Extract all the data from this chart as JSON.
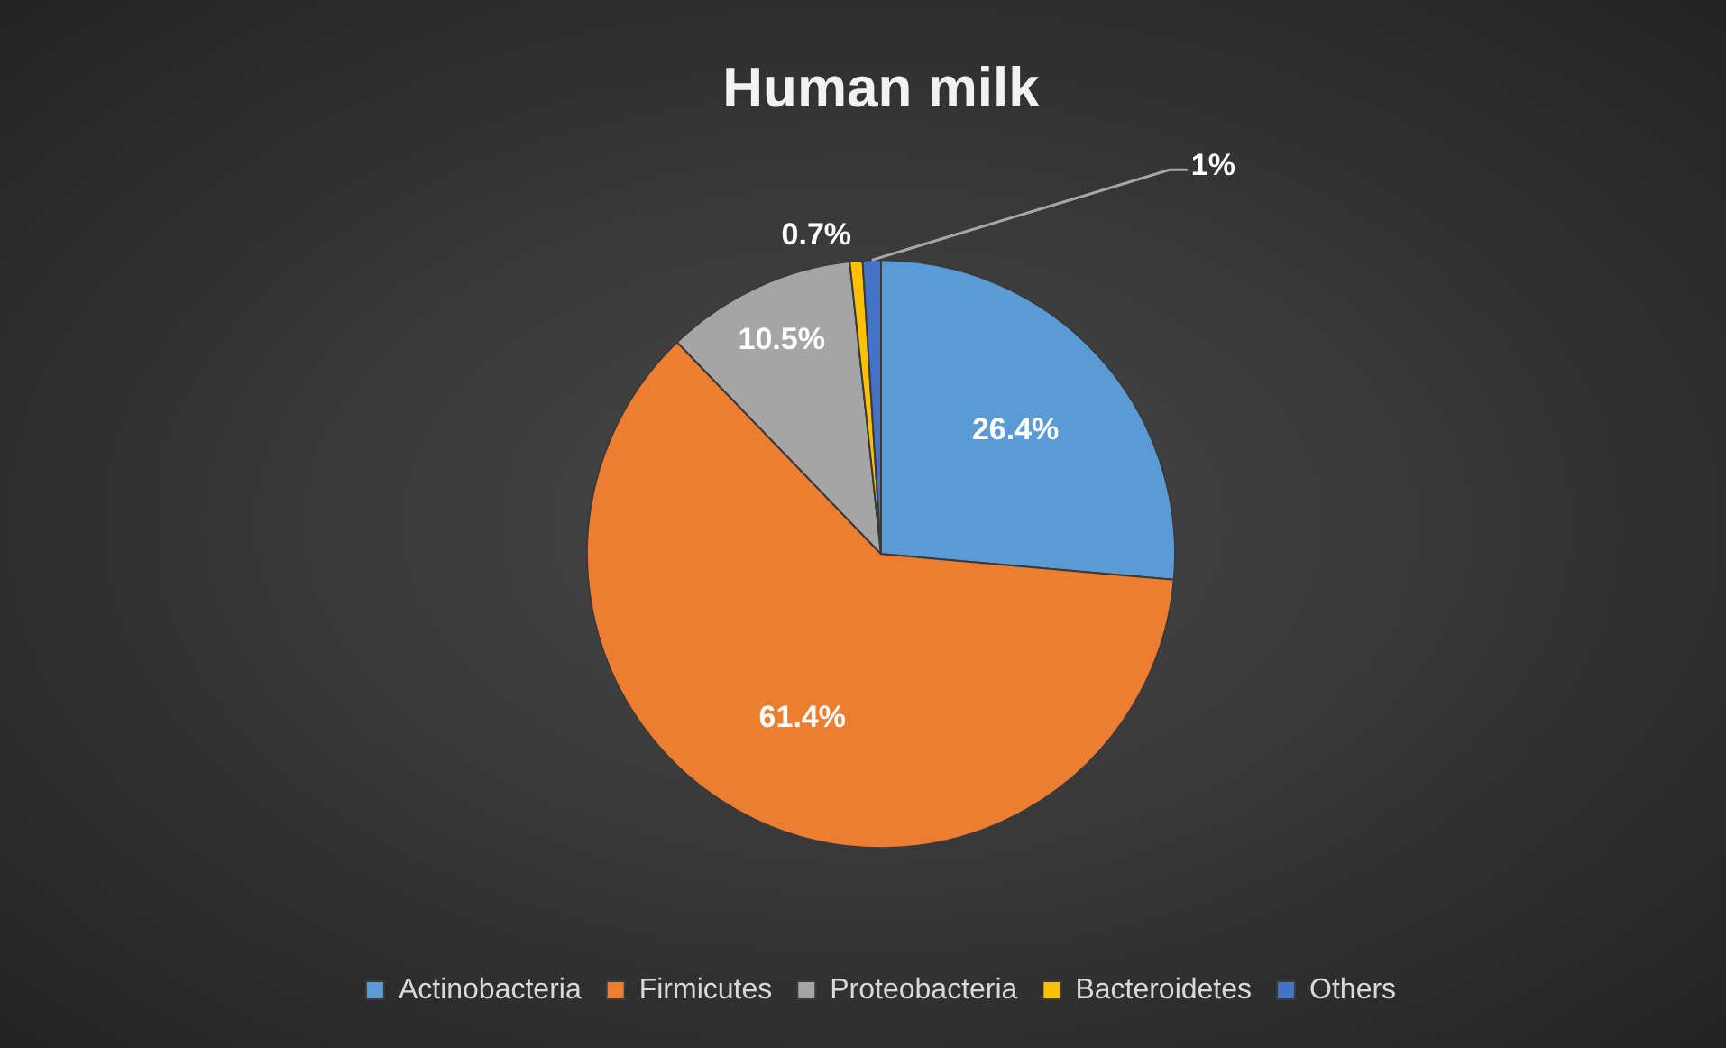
{
  "chart_data": {
    "type": "pie",
    "title": "Human milk",
    "categories": [
      "Actinobacteria",
      "Firmicutes",
      "Proteobacteria",
      "Bacteroidetes",
      "Others"
    ],
    "values": [
      26.4,
      61.4,
      10.5,
      0.7,
      1
    ],
    "colors": [
      "#5b9bd5",
      "#ed7d31",
      "#a5a5a5",
      "#ffc000",
      "#4472c4"
    ],
    "value_labels": [
      "26.4%",
      "61.4%",
      "10.5%",
      "0.7%",
      "1%"
    ],
    "legend": "bottom"
  }
}
